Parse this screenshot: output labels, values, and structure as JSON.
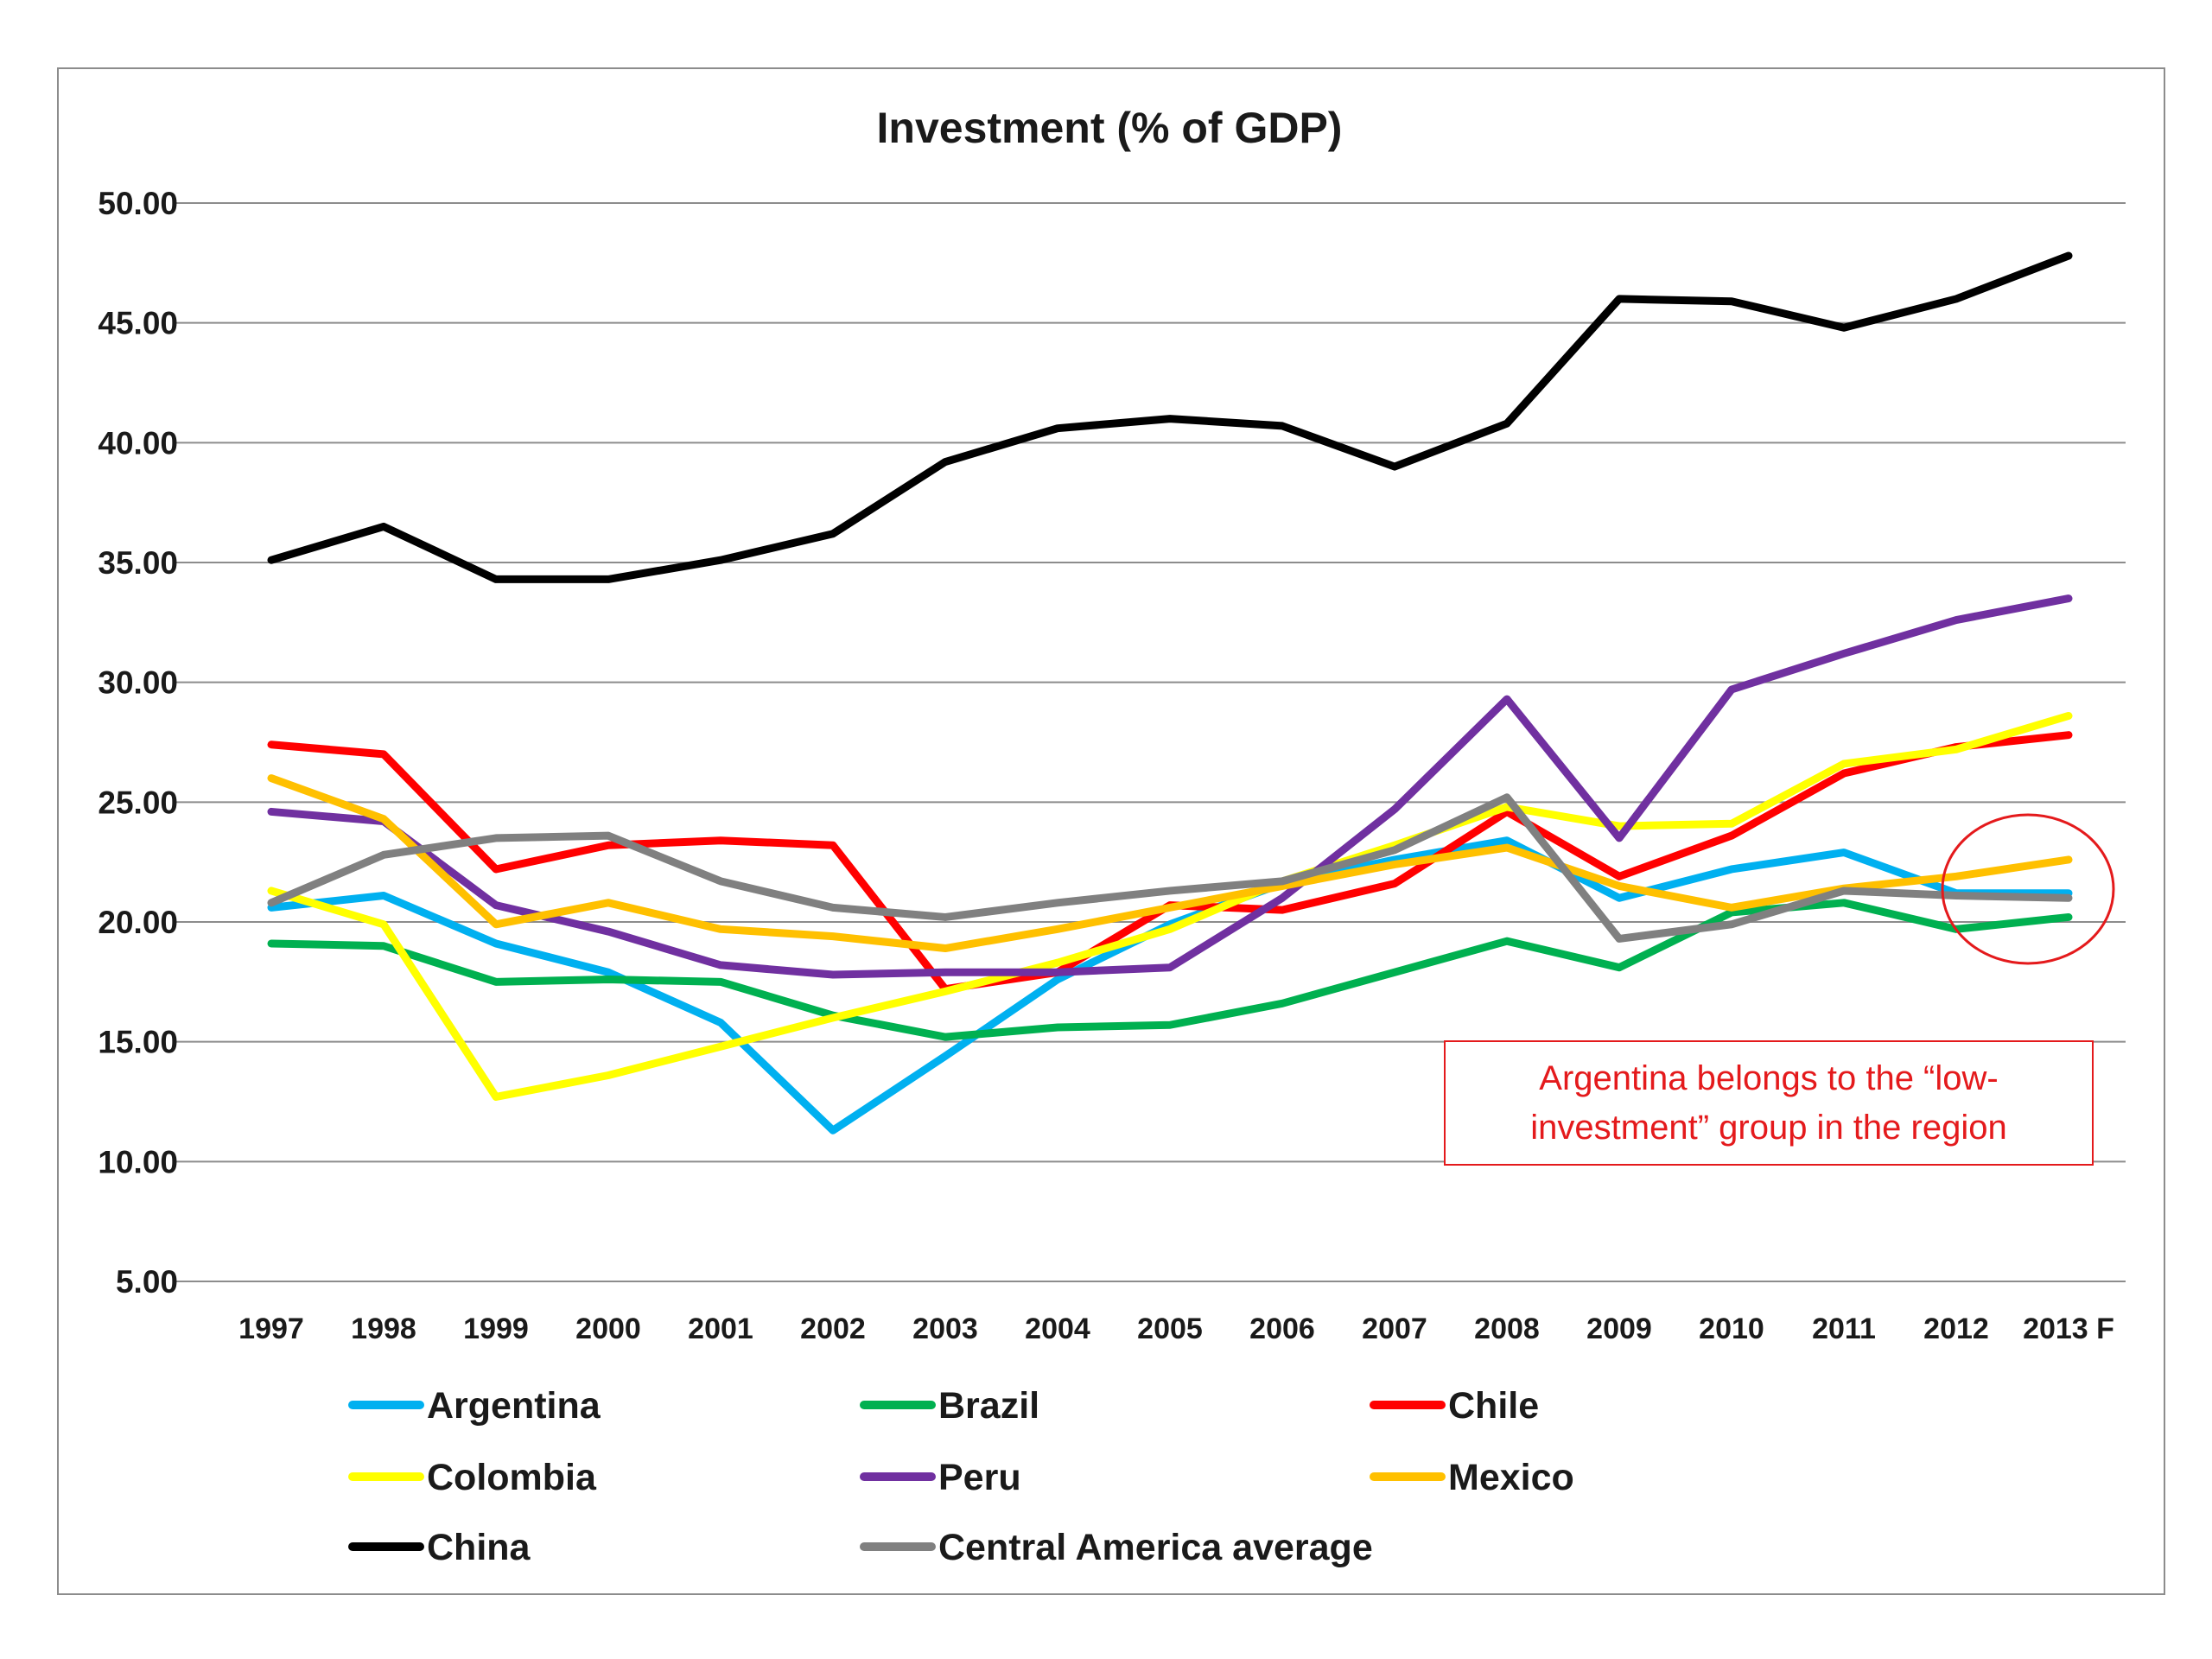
{
  "chart_data": {
    "type": "line",
    "title": "Investment (% of GDP)",
    "xlabel": "",
    "ylabel": "",
    "ylim": [
      5,
      50
    ],
    "yticks": [
      "5.00",
      "10.00",
      "15.00",
      "20.00",
      "25.00",
      "30.00",
      "35.00",
      "40.00",
      "45.00",
      "50.00"
    ],
    "grid": true,
    "legend_position": "bottom",
    "categories": [
      "1997",
      "1998",
      "1999",
      "2000",
      "2001",
      "2002",
      "2003",
      "2004",
      "2005",
      "2006",
      "2007",
      "2008",
      "2009",
      "2010",
      "2011",
      "2012",
      "2013 F"
    ],
    "series": [
      {
        "name": "Argentina",
        "color": "#00b0f0",
        "values": [
          20.6,
          21.1,
          19.1,
          17.9,
          15.8,
          11.3,
          14.4,
          17.6,
          19.9,
          21.6,
          22.6,
          23.4,
          21.0,
          22.2,
          22.9,
          21.2,
          21.2
        ]
      },
      {
        "name": "Brazil",
        "color": "#00b050",
        "values": [
          19.1,
          19.0,
          17.5,
          17.6,
          17.5,
          16.1,
          15.2,
          15.6,
          15.7,
          16.6,
          17.9,
          19.2,
          18.1,
          20.4,
          20.8,
          19.7,
          20.2
        ]
      },
      {
        "name": "Chile",
        "color": "#ff0000",
        "values": [
          27.4,
          27.0,
          22.2,
          23.2,
          23.4,
          23.2,
          17.2,
          17.9,
          20.7,
          20.5,
          21.6,
          24.6,
          21.9,
          23.6,
          26.2,
          27.3,
          27.8
        ]
      },
      {
        "name": "Colombia",
        "color": "#ffff00",
        "values": [
          21.3,
          19.9,
          12.7,
          13.6,
          14.8,
          16.0,
          17.1,
          18.3,
          19.7,
          21.7,
          23.2,
          24.8,
          24.0,
          24.1,
          26.6,
          27.2,
          28.6
        ]
      },
      {
        "name": "Peru",
        "color": "#7030a0",
        "values": [
          24.6,
          24.2,
          20.7,
          19.6,
          18.2,
          17.8,
          17.9,
          17.9,
          18.1,
          21.0,
          24.7,
          29.3,
          23.5,
          29.7,
          31.2,
          32.6,
          33.5
        ]
      },
      {
        "name": "Mexico",
        "color": "#ffc000",
        "values": [
          26.0,
          24.3,
          19.9,
          20.8,
          19.7,
          19.4,
          18.9,
          19.7,
          20.6,
          21.5,
          22.4,
          23.1,
          21.5,
          20.6,
          21.4,
          21.9,
          22.6
        ]
      },
      {
        "name": "China",
        "color": "#000000",
        "values": [
          35.1,
          36.5,
          34.3,
          34.3,
          35.1,
          36.2,
          39.2,
          40.6,
          41.0,
          40.7,
          39.0,
          40.8,
          46.0,
          45.9,
          44.8,
          46.0,
          47.8
        ]
      },
      {
        "name": "Central America average",
        "color": "#808080",
        "values": [
          20.8,
          22.8,
          23.5,
          23.6,
          21.7,
          20.6,
          20.2,
          20.8,
          21.3,
          21.7,
          23.0,
          25.2,
          19.3,
          19.9,
          21.3,
          21.1,
          21.0
        ]
      }
    ],
    "annotations": [
      {
        "text_line1": "Argentina belongs to the “low-",
        "text_line2": "investment” group in the region",
        "color": "#e41a1c"
      }
    ]
  }
}
